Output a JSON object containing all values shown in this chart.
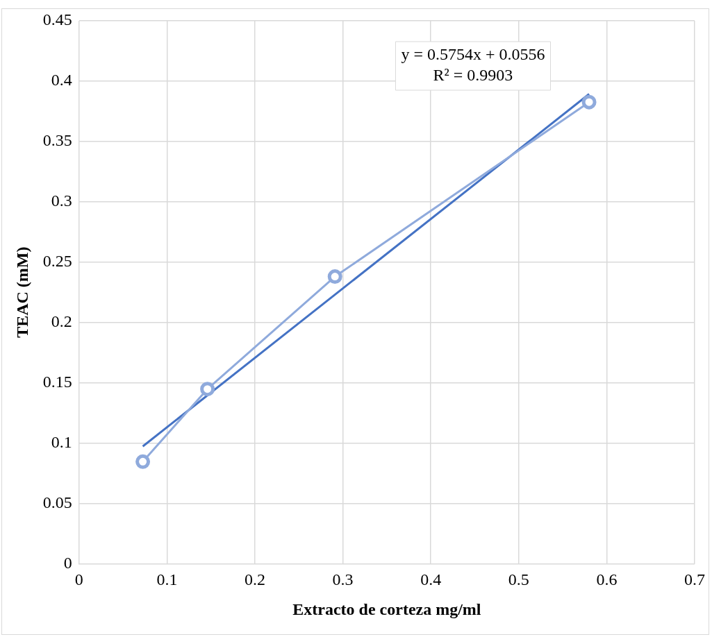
{
  "chart_data": {
    "type": "line",
    "xlabel": "Extracto de corteza mg/ml",
    "ylabel": "TEAC (mM)",
    "xlim": [
      0,
      0.7
    ],
    "xticks": [
      0,
      0.1,
      0.2,
      0.3,
      0.4,
      0.5,
      0.6,
      0.7
    ],
    "ylim": [
      0,
      0.45
    ],
    "yticks": [
      0,
      0.05,
      0.1,
      0.15,
      0.2,
      0.25,
      0.3,
      0.35,
      0.4,
      0.45
    ],
    "grid": true,
    "legend": false,
    "annotations": [
      "y = 0.5754x + 0.0556",
      "R² = 0.9903"
    ],
    "series": [
      {
        "color": "#8faadc",
        "marker": "circle",
        "x": [
          0.0725,
          0.146,
          0.291,
          0.58
        ],
        "values": [
          0.0846,
          0.1448,
          0.238,
          0.3826
        ]
      },
      {
        "type": "line",
        "color": "#4472c4",
        "marker": "none",
        "x": [
          0.0725,
          0.58
        ],
        "values": [
          0.0973,
          0.3893
        ]
      }
    ]
  }
}
